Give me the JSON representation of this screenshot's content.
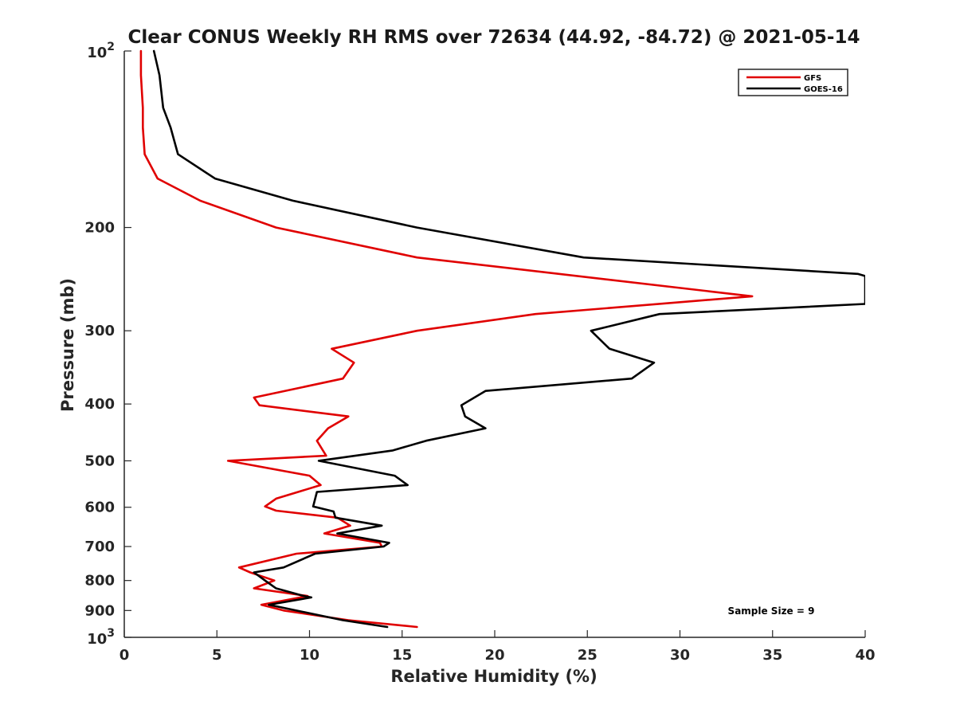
{
  "chart_data": {
    "type": "line",
    "title": "Clear CONUS Weekly RH RMS over 72634 (44.92, -84.72) @ 2021-05-14",
    "xlabel": "Relative Humidity (%)",
    "ylabel": "Pressure (mb)",
    "xlim": [
      0,
      40
    ],
    "ylim": [
      100,
      1000
    ],
    "yscale": "log",
    "y_reversed": true,
    "grid": false,
    "legend_position": "top-right",
    "x_ticks": [
      {
        "value": 0,
        "label": "0"
      },
      {
        "value": 5,
        "label": "5"
      },
      {
        "value": 10,
        "label": "10"
      },
      {
        "value": 15,
        "label": "15"
      },
      {
        "value": 20,
        "label": "20"
      },
      {
        "value": 25,
        "label": "25"
      },
      {
        "value": 30,
        "label": "30"
      },
      {
        "value": 35,
        "label": "35"
      },
      {
        "value": 40,
        "label": "40"
      }
    ],
    "y_ticks": [
      {
        "value": 100,
        "base": "10",
        "exp": "2"
      },
      {
        "value": 200,
        "label": "200"
      },
      {
        "value": 300,
        "label": "300"
      },
      {
        "value": 400,
        "label": "400"
      },
      {
        "value": 500,
        "label": "500"
      },
      {
        "value": 600,
        "label": "600"
      },
      {
        "value": 700,
        "label": "700"
      },
      {
        "value": 800,
        "label": "800"
      },
      {
        "value": 900,
        "label": "900"
      },
      {
        "value": 1000,
        "base": "10",
        "exp": "3"
      }
    ],
    "series": [
      {
        "name": "GFS",
        "color": "#e00000",
        "points": [
          [
            0.9,
            100
          ],
          [
            0.9,
            110
          ],
          [
            1.0,
            125
          ],
          [
            1.0,
            135
          ],
          [
            1.1,
            150
          ],
          [
            1.8,
            165
          ],
          [
            4.1,
            180
          ],
          [
            8.2,
            200
          ],
          [
            15.8,
            225
          ],
          [
            33.9,
            262
          ],
          [
            22.2,
            281
          ],
          [
            15.8,
            300
          ],
          [
            11.2,
            322
          ],
          [
            12.4,
            340
          ],
          [
            11.8,
            362
          ],
          [
            7.0,
            390
          ],
          [
            7.3,
            402
          ],
          [
            12.1,
            420
          ],
          [
            11.0,
            440
          ],
          [
            10.4,
            462
          ],
          [
            10.9,
            490
          ],
          [
            5.6,
            500
          ],
          [
            10.0,
            530
          ],
          [
            10.6,
            550
          ],
          [
            8.2,
            580
          ],
          [
            7.6,
            598
          ],
          [
            8.2,
            608
          ],
          [
            11.5,
            625
          ],
          [
            12.2,
            645
          ],
          [
            10.8,
            665
          ],
          [
            13.8,
            690
          ],
          [
            13.9,
            700
          ],
          [
            9.3,
            720
          ],
          [
            6.2,
            760
          ],
          [
            6.8,
            775
          ],
          [
            8.1,
            800
          ],
          [
            7.0,
            825
          ],
          [
            9.9,
            850
          ],
          [
            7.4,
            880
          ],
          [
            8.6,
            900
          ],
          [
            12.1,
            935
          ],
          [
            15.8,
            960
          ]
        ]
      },
      {
        "name": "GOES-16",
        "color": "#000000",
        "points": [
          [
            1.6,
            100
          ],
          [
            1.9,
            110
          ],
          [
            2.1,
            125
          ],
          [
            2.5,
            135
          ],
          [
            2.9,
            150
          ],
          [
            4.9,
            165
          ],
          [
            9.1,
            180
          ],
          [
            15.8,
            200
          ],
          [
            24.8,
            225
          ],
          [
            39.6,
            240
          ],
          [
            40.0,
            242
          ],
          [
            40.0,
            270
          ],
          [
            28.9,
            281
          ],
          [
            25.2,
            300
          ],
          [
            26.2,
            322
          ],
          [
            28.6,
            340
          ],
          [
            27.4,
            362
          ],
          [
            19.5,
            380
          ],
          [
            18.2,
            402
          ],
          [
            18.4,
            420
          ],
          [
            19.5,
            440
          ],
          [
            16.3,
            462
          ],
          [
            14.5,
            480
          ],
          [
            10.5,
            500
          ],
          [
            14.6,
            530
          ],
          [
            15.3,
            550
          ],
          [
            10.4,
            565
          ],
          [
            10.2,
            598
          ],
          [
            11.3,
            610
          ],
          [
            11.4,
            625
          ],
          [
            13.9,
            645
          ],
          [
            11.5,
            665
          ],
          [
            14.3,
            690
          ],
          [
            14.0,
            700
          ],
          [
            10.3,
            720
          ],
          [
            8.6,
            760
          ],
          [
            7.0,
            775
          ],
          [
            7.6,
            800
          ],
          [
            8.2,
            825
          ],
          [
            9.7,
            850
          ],
          [
            10.1,
            855
          ],
          [
            7.8,
            880
          ],
          [
            11.8,
            935
          ],
          [
            14.2,
            960
          ]
        ]
      }
    ],
    "annotations": [
      {
        "text": "Sample Size = 9"
      }
    ]
  }
}
